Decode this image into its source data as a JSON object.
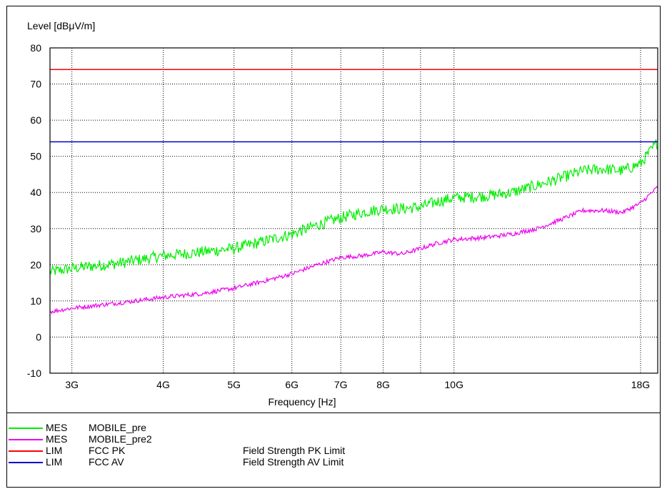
{
  "chart_data": {
    "type": "line",
    "ylabel": "Level [dBμV/m]",
    "xlabel": "Frequency [Hz]",
    "xscale": "log",
    "xlim": [
      2800000000,
      19000000000
    ],
    "ylim": [
      -10,
      80
    ],
    "yticks": [
      80,
      70,
      60,
      50,
      40,
      30,
      20,
      10,
      0,
      -10
    ],
    "xticks": [
      {
        "value": 3000000000,
        "label": "3G"
      },
      {
        "value": 4000000000,
        "label": "4G"
      },
      {
        "value": 5000000000,
        "label": "5G"
      },
      {
        "value": 6000000000,
        "label": "6G"
      },
      {
        "value": 7000000000,
        "label": "7G"
      },
      {
        "value": 8000000000,
        "label": "8G"
      },
      {
        "value": 9000000000,
        "label": ""
      },
      {
        "value": 10000000000,
        "label": "10G"
      },
      {
        "value": 18000000000,
        "label": "18G"
      }
    ],
    "grid": true,
    "series": [
      {
        "name": "MOBILE_pre",
        "kind": "MES",
        "color": "#00ee00",
        "noise": 1.6,
        "x": [
          2800000000,
          3000000000,
          3500000000,
          4000000000,
          4500000000,
          5000000000,
          5500000000,
          6000000000,
          6500000000,
          7000000000,
          7500000000,
          8000000000,
          8500000000,
          9000000000,
          9500000000,
          10000000000,
          11000000000,
          12000000000,
          13000000000,
          14000000000,
          15000000000,
          16000000000,
          17000000000,
          18000000000,
          19000000000
        ],
        "y": [
          18,
          19,
          20.5,
          22.5,
          23.5,
          24.5,
          26.5,
          28.5,
          31,
          33,
          34.5,
          35.5,
          35.5,
          36,
          37.5,
          38.5,
          39,
          40,
          42,
          44,
          46,
          46.5,
          46,
          48,
          54
        ]
      },
      {
        "name": "MOBILE_pre2",
        "kind": "MES",
        "color": "#ee00ee",
        "noise": 0.6,
        "x": [
          2800000000,
          3000000000,
          3500000000,
          4000000000,
          4500000000,
          5000000000,
          5500000000,
          6000000000,
          6500000000,
          7000000000,
          7500000000,
          8000000000,
          8500000000,
          9000000000,
          9500000000,
          10000000000,
          11000000000,
          12000000000,
          13000000000,
          14000000000,
          15000000000,
          16000000000,
          17000000000,
          18000000000,
          19000000000
        ],
        "y": [
          7,
          8,
          9.5,
          11,
          12,
          13.5,
          15.5,
          17.5,
          20,
          22,
          22.5,
          23.5,
          23,
          24.5,
          26,
          27,
          27.5,
          28.5,
          30,
          32.5,
          35,
          35,
          34.5,
          37,
          41.5
        ]
      },
      {
        "name": "FCC PK",
        "kind": "LIM",
        "description": "Field Strength PK Limit",
        "color": "#ff0000",
        "x": [
          2800000000,
          19000000000
        ],
        "y": [
          74,
          74
        ]
      },
      {
        "name": "FCC AV",
        "kind": "LIM",
        "description": "Field Strength AV Limit",
        "color": "#0000cc",
        "x": [
          2800000000,
          19000000000
        ],
        "y": [
          54,
          54
        ]
      }
    ]
  }
}
